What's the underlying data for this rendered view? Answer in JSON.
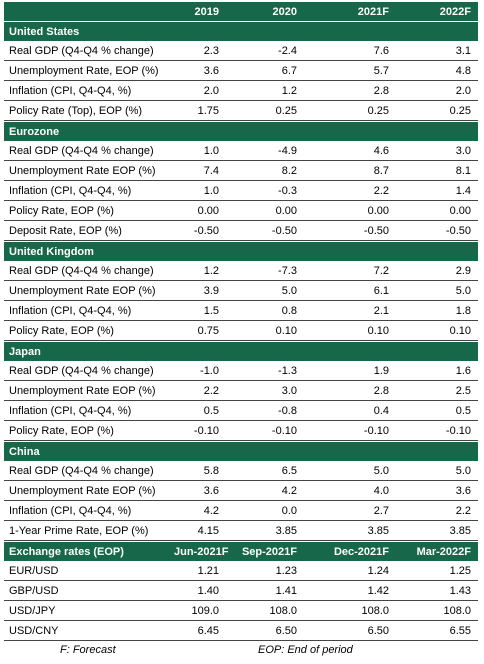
{
  "header": {
    "columns": [
      "2019",
      "2020",
      "2021F",
      "2022F"
    ]
  },
  "sections": [
    {
      "title": "United States",
      "rows": [
        {
          "label": "Real GDP (Q4-Q4 % change)",
          "values": [
            "2.3",
            "-2.4",
            "7.6",
            "3.1"
          ]
        },
        {
          "label": "Unemployment Rate, EOP (%)",
          "values": [
            "3.6",
            "6.7",
            "5.7",
            "4.8"
          ]
        },
        {
          "label": "Inflation (CPI, Q4-Q4, %)",
          "values": [
            "2.0",
            "1.2",
            "2.8",
            "2.0"
          ]
        },
        {
          "label": "Policy Rate (Top), EOP (%)",
          "values": [
            "1.75",
            "0.25",
            "0.25",
            "0.25"
          ]
        }
      ]
    },
    {
      "title": "Eurozone",
      "rows": [
        {
          "label": "Real GDP (Q4-Q4 % change)",
          "values": [
            "1.0",
            "-4.9",
            "4.6",
            "3.0"
          ]
        },
        {
          "label": "Unemployment Rate EOP (%)",
          "values": [
            "7.4",
            "8.2",
            "8.7",
            "8.1"
          ]
        },
        {
          "label": "Inflation (CPI, Q4-Q4, %)",
          "values": [
            "1.0",
            "-0.3",
            "2.2",
            "1.4"
          ]
        },
        {
          "label": "Policy Rate, EOP (%)",
          "values": [
            "0.00",
            "0.00",
            "0.00",
            "0.00"
          ]
        },
        {
          "label": "Deposit Rate, EOP (%)",
          "values": [
            "-0.50",
            "-0.50",
            "-0.50",
            "-0.50"
          ]
        }
      ]
    },
    {
      "title": "United Kingdom",
      "rows": [
        {
          "label": "Real GDP (Q4-Q4 % change)",
          "values": [
            "1.2",
            "-7.3",
            "7.2",
            "2.9"
          ]
        },
        {
          "label": "Unemployment Rate EOP (%)",
          "values": [
            "3.9",
            "5.0",
            "6.1",
            "5.0"
          ]
        },
        {
          "label": "Inflation (CPI, Q4-Q4, %)",
          "values": [
            "1.5",
            "0.8",
            "2.1",
            "1.8"
          ]
        },
        {
          "label": "Policy Rate, EOP (%)",
          "values": [
            "0.75",
            "0.10",
            "0.10",
            "0.10"
          ]
        }
      ]
    },
    {
      "title": "Japan",
      "rows": [
        {
          "label": "Real GDP (Q4-Q4 % change)",
          "values": [
            "-1.0",
            "-1.3",
            "1.9",
            "1.6"
          ]
        },
        {
          "label": "Unemployment Rate EOP (%)",
          "values": [
            "2.2",
            "3.0",
            "2.8",
            "2.5"
          ]
        },
        {
          "label": "Inflation (CPI, Q4-Q4, %)",
          "values": [
            "0.5",
            "-0.8",
            "0.4",
            "0.5"
          ]
        },
        {
          "label": "Policy Rate, EOP (%)",
          "values": [
            "-0.10",
            "-0.10",
            "-0.10",
            "-0.10"
          ]
        }
      ]
    },
    {
      "title": "China",
      "rows": [
        {
          "label": "Real GDP (Q4-Q4 % change)",
          "values": [
            "5.8",
            "6.5",
            "5.0",
            "5.0"
          ]
        },
        {
          "label": "Unemployment Rate EOP (%)",
          "values": [
            "3.6",
            "4.2",
            "4.0",
            "3.6"
          ]
        },
        {
          "label": "Inflation (CPI, Q4-Q4, %)",
          "values": [
            "4.2",
            "0.0",
            "2.7",
            "2.2"
          ]
        },
        {
          "label": "1-Year Prime Rate, EOP (%)",
          "values": [
            "4.15",
            "3.85",
            "3.85",
            "3.85"
          ]
        }
      ]
    }
  ],
  "fx": {
    "title": "Exchange rates (EOP)",
    "columns": [
      "Jun-2021F",
      "Sep-2021F",
      "Dec-2021F",
      "Mar-2022F"
    ],
    "rows": [
      {
        "label": "EUR/USD",
        "values": [
          "1.21",
          "1.23",
          "1.24",
          "1.25"
        ]
      },
      {
        "label": "GBP/USD",
        "values": [
          "1.40",
          "1.41",
          "1.42",
          "1.43"
        ]
      },
      {
        "label": "USD/JPY",
        "values": [
          "109.0",
          "108.0",
          "108.0",
          "108.0"
        ]
      },
      {
        "label": "USD/CNY",
        "values": [
          "6.45",
          "6.50",
          "6.50",
          "6.55"
        ]
      }
    ]
  },
  "footnotes": [
    "F: Forecast",
    "EOP: End of period"
  ]
}
